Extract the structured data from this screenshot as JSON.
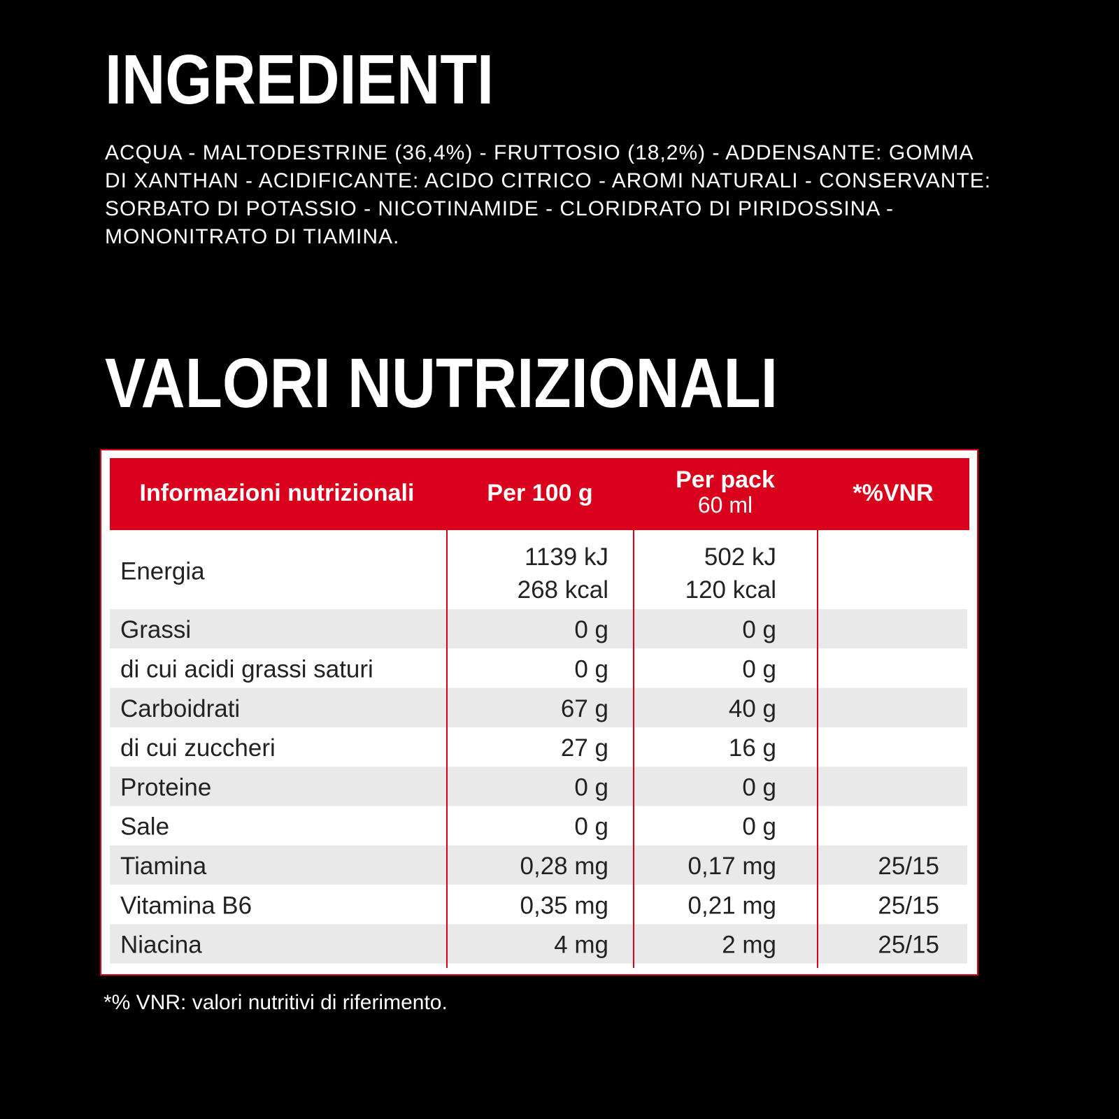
{
  "ingredients": {
    "title": "INGREDIENTI",
    "lines": [
      "ACQUA - MALTODESTRINE (36,4%) - FRUTTOSIO (18,2%) - ADDENSANTE: GOMMA",
      "DI XANTHAN - ACIDIFICANTE: ACIDO CITRICO - AROMI NATURALI - CONSERVANTE:",
      "SORBATO DI POTASSIO - NICOTINAMIDE - CLORIDRATO DI PIRIDOSSINA -",
      "MONONITRATO DI TIAMINA."
    ]
  },
  "nutrition": {
    "title": "VALORI NUTRIZIONALI",
    "table": {
      "header": [
        [
          "Informazioni nutrizionali"
        ],
        [
          "Per 100 g"
        ],
        [
          "Per pack",
          "60 ml"
        ],
        [
          "*%VNR"
        ]
      ],
      "rows": [
        [
          [
            "Energia"
          ],
          [
            "1139 kJ",
            "268 kcal"
          ],
          [
            "502 kJ",
            "120 kcal"
          ],
          []
        ],
        [
          [
            "Grassi"
          ],
          [
            "0 g"
          ],
          [
            "0 g"
          ],
          []
        ],
        [
          [
            "di cui acidi grassi saturi"
          ],
          [
            "0 g"
          ],
          [
            "0 g"
          ],
          []
        ],
        [
          [
            "Carboidrati"
          ],
          [
            "67 g"
          ],
          [
            "40 g"
          ],
          []
        ],
        [
          [
            "di cui zuccheri"
          ],
          [
            "27 g"
          ],
          [
            "16 g"
          ],
          []
        ],
        [
          [
            "Proteine"
          ],
          [
            "0 g"
          ],
          [
            "0 g"
          ],
          []
        ],
        [
          [
            "Sale"
          ],
          [
            "0 g"
          ],
          [
            "0 g"
          ],
          []
        ],
        [
          [
            "Tiamina"
          ],
          [
            "0,28 mg"
          ],
          [
            "0,17 mg"
          ],
          [
            "25/15"
          ]
        ],
        [
          [
            "Vitamina B6"
          ],
          [
            "0,35 mg"
          ],
          [
            "0,21 mg"
          ],
          [
            "25/15"
          ]
        ],
        [
          [
            "Niacina"
          ],
          [
            "4 mg"
          ],
          [
            "2 mg"
          ],
          [
            "25/15"
          ]
        ]
      ]
    },
    "footnote": "*% VNR: valori nutritivi di riferimento."
  }
}
